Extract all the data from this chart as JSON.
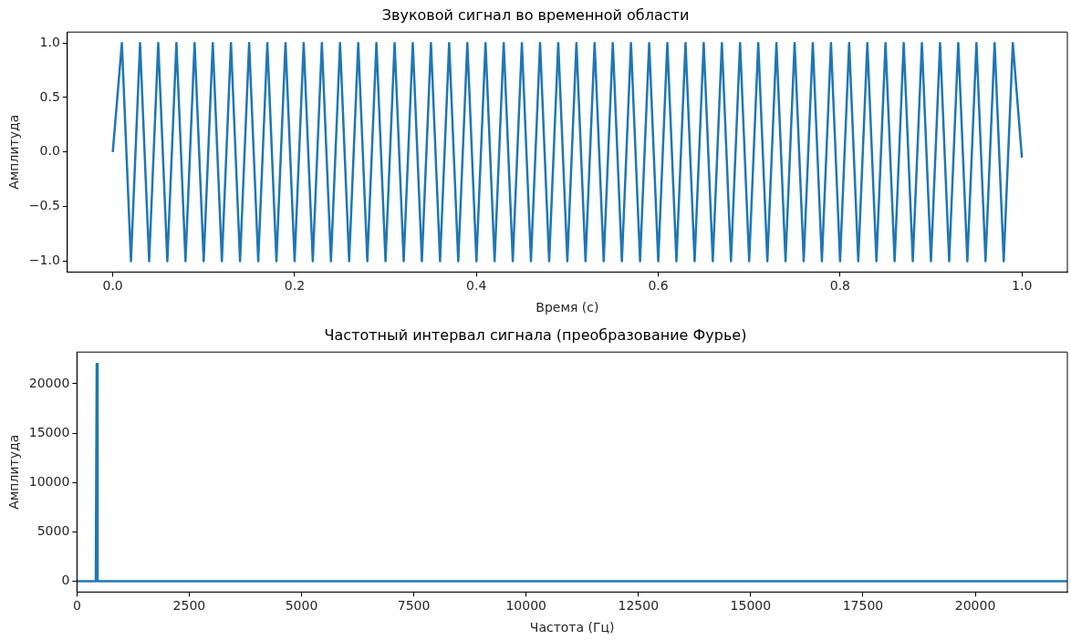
{
  "chart_data": [
    {
      "type": "line",
      "title": "Звуковой сигнал во временной области",
      "xlabel": "Время (с)",
      "ylabel": "Амплитуда",
      "color": "#1f77b4",
      "marker": "none",
      "x": [
        0,
        0.01,
        0.02,
        0.03,
        0.04,
        0.05,
        0.06,
        0.07,
        0.08,
        0.09,
        0.1,
        0.11,
        0.12,
        0.13,
        0.14,
        0.15,
        0.16,
        0.17,
        0.18,
        0.19,
        0.2,
        0.21,
        0.22,
        0.23,
        0.24,
        0.25,
        0.26,
        0.27,
        0.28,
        0.29,
        0.3,
        0.31,
        0.32,
        0.33,
        0.34,
        0.35,
        0.36,
        0.37,
        0.38,
        0.39,
        0.4,
        0.41,
        0.42,
        0.43,
        0.44,
        0.45,
        0.46,
        0.47,
        0.48,
        0.49,
        0.5,
        0.51,
        0.52,
        0.53,
        0.54,
        0.55,
        0.56,
        0.57,
        0.58,
        0.59,
        0.6,
        0.61,
        0.62,
        0.63,
        0.64,
        0.65,
        0.66,
        0.67,
        0.68,
        0.69,
        0.7,
        0.71,
        0.72,
        0.73,
        0.74,
        0.75,
        0.76,
        0.77,
        0.78,
        0.79,
        0.8,
        0.81,
        0.82,
        0.83,
        0.84,
        0.85,
        0.86,
        0.87,
        0.88,
        0.89,
        0.9,
        0.91,
        0.92,
        0.93,
        0.94,
        0.95,
        0.96,
        0.97,
        0.98,
        0.99,
        1
      ],
      "values": [
        0,
        1,
        -1,
        1,
        -1,
        1,
        -1,
        1,
        -1,
        1,
        -1,
        1,
        -1,
        1,
        -1,
        1,
        -1,
        1,
        -1,
        1,
        -1,
        1,
        -1,
        1,
        -1,
        1,
        -1,
        1,
        -1,
        1,
        -1,
        1,
        -1,
        1,
        -1,
        1,
        -1,
        1,
        -1,
        1,
        -1,
        1,
        -1,
        1,
        -1,
        1,
        -1,
        1,
        -1,
        1,
        -1,
        1,
        -1,
        1,
        -1,
        1,
        -1,
        1,
        -1,
        1,
        -1,
        1,
        -1,
        1,
        -1,
        1,
        -1,
        1,
        -1,
        1,
        -1,
        1,
        -1,
        1,
        -1,
        1,
        -1,
        1,
        -1,
        1,
        -1,
        1,
        -1,
        1,
        -1,
        1,
        -1,
        1,
        -1,
        1,
        -1,
        1,
        -1,
        1,
        -1,
        1,
        -1,
        1,
        -1,
        1,
        -0.05
      ],
      "xlim": [
        -0.05,
        1.05
      ],
      "xticks": [
        {
          "value": 0,
          "label": "0.0"
        },
        {
          "value": 0.2,
          "label": "0.2"
        },
        {
          "value": 0.4,
          "label": "0.4"
        },
        {
          "value": 0.6,
          "label": "0.6"
        },
        {
          "value": 0.8,
          "label": "0.8"
        },
        {
          "value": 1,
          "label": "1.0"
        }
      ],
      "ylim": [
        -1.1,
        1.1
      ],
      "yticks": [
        {
          "value": -1,
          "label": "−1.0"
        },
        {
          "value": -0.5,
          "label": "−0.5"
        },
        {
          "value": 0,
          "label": "0.0"
        },
        {
          "value": 0.5,
          "label": "0.5"
        },
        {
          "value": 1,
          "label": "1.0"
        }
      ]
    },
    {
      "type": "line",
      "title": "Частотный интервал сигнала (преобразование Фурье)",
      "xlabel": "Частота (Гц)",
      "ylabel": "Амплитуда",
      "color": "#1f77b4",
      "marker": "none",
      "x": [
        0,
        420,
        440,
        460,
        22050
      ],
      "values": [
        0,
        0,
        22000,
        0,
        0
      ],
      "xlim": [
        0,
        22050
      ],
      "xticks": [
        0,
        2500,
        5000,
        7500,
        10000,
        12500,
        15000,
        17500,
        20000
      ],
      "ylim": [
        -1100,
        23200
      ],
      "yticks": [
        0,
        5000,
        10000,
        15000,
        20000
      ]
    }
  ]
}
